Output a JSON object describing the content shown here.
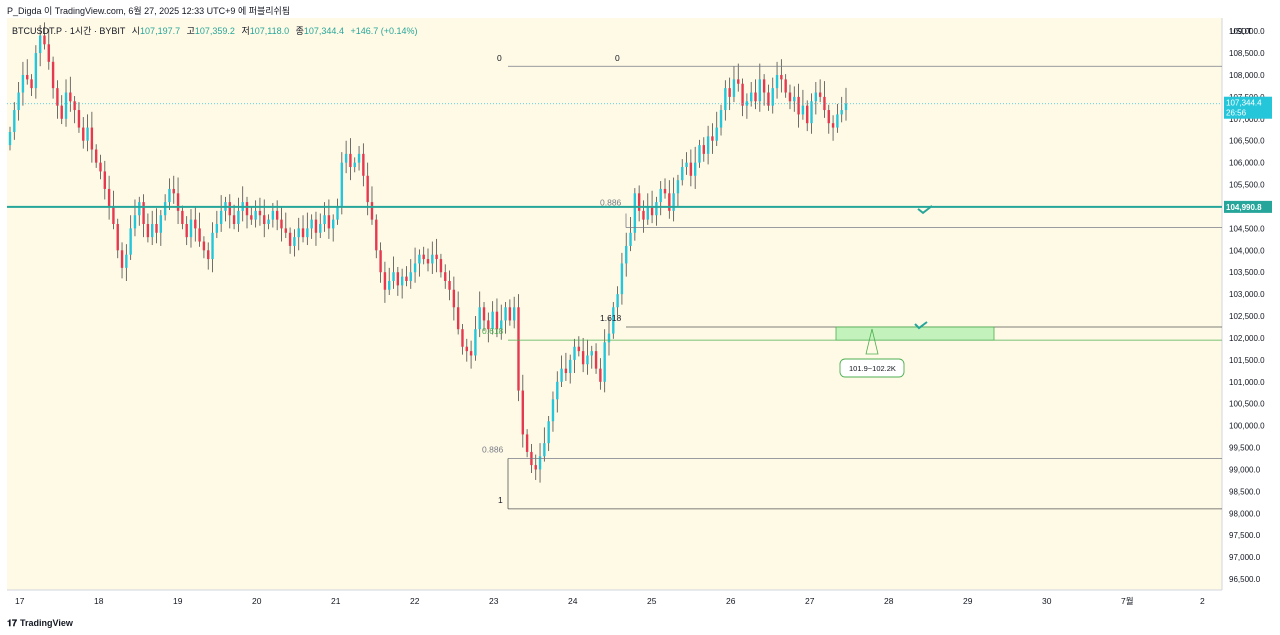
{
  "header": {
    "author_line": "P_Digda 이 TradingView.com, 6월 27, 2025 12:33 UTC+9 에 퍼블리쉬됨"
  },
  "legend": {
    "symbol": "BTCUSDT.P · 1시간 · BYBIT",
    "open_label": "시",
    "open": "107,197.7",
    "high_label": "고",
    "high": "107,359.2",
    "low_label": "저",
    "low": "107,118.0",
    "close_label": "종",
    "close": "107,344.4",
    "change": "+146.7 (+0.14%)"
  },
  "footer": {
    "brand": "TradingView"
  },
  "colors": {
    "background": "#fffae6",
    "up": "#26c6da",
    "down": "#e53950",
    "support": "#26a69a",
    "zone": "#b9f0b4",
    "zone_border": "#4caf50"
  },
  "chart_data": {
    "type": "candlestick",
    "y_axis": {
      "currency": "USDT",
      "min": 96250,
      "max": 109300,
      "ticks": [
        "109,000.0",
        "108,500.0",
        "108,000.0",
        "107,500.0",
        "107,000.0",
        "106,500.0",
        "106,000.0",
        "105,500.0",
        "105,000.0",
        "104,500.0",
        "104,000.0",
        "103,500.0",
        "103,000.0",
        "102,500.0",
        "102,000.0",
        "101,500.0",
        "101,000.0",
        "100,500.0",
        "100,000.0",
        "99,500.0",
        "99,000.0",
        "98,500.0",
        "98,000.0",
        "97,500.0",
        "97,000.0",
        "96,500.0"
      ]
    },
    "x_axis": {
      "ticks": [
        "17",
        "18",
        "19",
        "20",
        "21",
        "22",
        "23",
        "24",
        "25",
        "26",
        "27",
        "28",
        "29",
        "30",
        "7월",
        "2"
      ]
    },
    "last_price": {
      "value": 107344.4,
      "label": "107,344.4",
      "countdown": "26:56"
    },
    "support_line": {
      "value": 104990.8,
      "label": "104,990.8"
    },
    "fib_levels": [
      {
        "label": "0",
        "value": 108200
      },
      {
        "label": "0",
        "value": 108200
      },
      {
        "label": "0.886",
        "value": 104520
      },
      {
        "label": "1.618",
        "value": 102250
      },
      {
        "label": "0.618",
        "value": 101950
      },
      {
        "label": "0.886",
        "value": 99250
      },
      {
        "label": "1",
        "value": 98100
      }
    ],
    "target_zone": {
      "low": 101950,
      "high": 102250,
      "label": "101.9~102.2K"
    },
    "closes": [
      106700,
      107200,
      107600,
      108000,
      107900,
      107700,
      108500,
      108900,
      108700,
      108300,
      107700,
      107300,
      107000,
      107600,
      107400,
      107200,
      106800,
      106500,
      106800,
      106300,
      106000,
      105800,
      105400,
      105000,
      104600,
      104000,
      103600,
      103900,
      104500,
      104800,
      105100,
      104600,
      104300,
      104600,
      104400,
      104800,
      105100,
      105400,
      105300,
      104900,
      104600,
      104300,
      104700,
      104500,
      104200,
      104000,
      103800,
      104400,
      104600,
      104900,
      105100,
      104800,
      104600,
      104900,
      105100,
      104800,
      104700,
      104900,
      104800,
      104600,
      104700,
      104900,
      104700,
      104500,
      104400,
      104100,
      104300,
      104500,
      104300,
      104500,
      104700,
      104400,
      104600,
      104800,
      104500,
      104700,
      105000,
      106000,
      106200,
      105900,
      106000,
      106200,
      105700,
      105100,
      104700,
      104000,
      103500,
      103100,
      103300,
      103500,
      103200,
      103400,
      103300,
      103500,
      103700,
      103900,
      103800,
      103700,
      103900,
      103800,
      103500,
      103300,
      103100,
      102700,
      102200,
      101800,
      101700,
      101600,
      102200,
      102700,
      102400,
      102200,
      102600,
      102200,
      102400,
      102700,
      102400,
      102700,
      100800,
      99800,
      99400,
      99100,
      99000,
      99300,
      99600,
      100100,
      100600,
      101000,
      101300,
      101200,
      101500,
      101800,
      101700,
      101400,
      101600,
      101700,
      101300,
      101000,
      101900,
      102100,
      102700,
      103000,
      103700,
      104100,
      104400,
      105300,
      104900,
      104700,
      105000,
      104800,
      105100,
      105400,
      105300,
      104900,
      105300,
      105600,
      105900,
      106000,
      105700,
      106000,
      106400,
      106200,
      106600,
      106500,
      106800,
      107200,
      107700,
      107500,
      107900,
      107800,
      107300,
      107400,
      107600,
      107400,
      107900,
      107600,
      107300,
      107700,
      108000,
      107900,
      107600,
      107400,
      107500,
      107100,
      107300,
      106900,
      107400,
      107600,
      107500,
      107200,
      106900,
      106800,
      107100,
      107200,
      107344.4
    ]
  }
}
